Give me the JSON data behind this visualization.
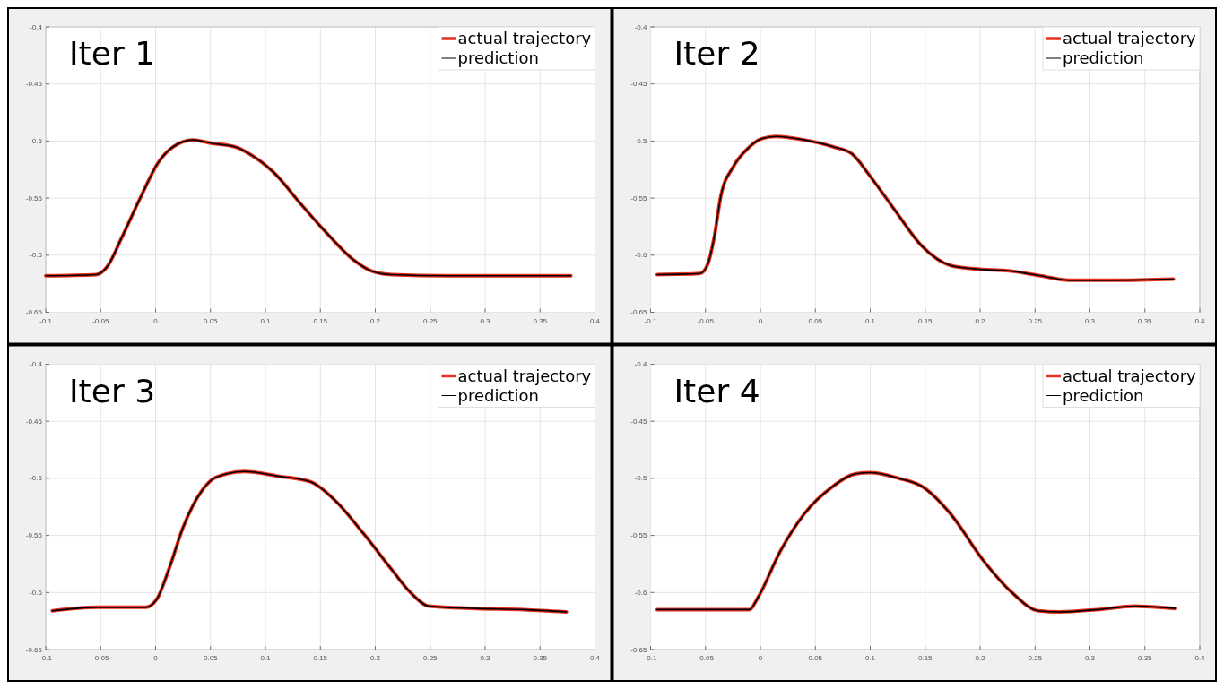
{
  "chart_data": [
    {
      "type": "line",
      "title": "Iter 1",
      "xlim": [
        -0.1,
        0.4
      ],
      "ylim": [
        -0.65,
        -0.4
      ],
      "xticks": [
        -0.1,
        -0.05,
        0,
        0.05,
        0.1,
        0.15,
        0.2,
        0.25,
        0.3,
        0.35,
        0.4
      ],
      "yticks": [
        -0.65,
        -0.6,
        -0.55,
        -0.5,
        -0.45,
        -0.4
      ],
      "grid": true,
      "legend": "top right",
      "series": [
        {
          "name": "actual trajectory",
          "color": "#e8321e",
          "x": [
            -0.1,
            -0.054,
            -0.044,
            -0.031,
            -0.014,
            0.003,
            0.016,
            0.034,
            0.051,
            0.072,
            0.085,
            0.107,
            0.133,
            0.159,
            0.18,
            0.197,
            0.215,
            0.266,
            0.353,
            0.378
          ],
          "values": [
            -0.618,
            -0.617,
            -0.61,
            -0.585,
            -0.55,
            -0.518,
            -0.505,
            -0.499,
            -0.502,
            -0.505,
            -0.511,
            -0.527,
            -0.556,
            -0.584,
            -0.604,
            -0.614,
            -0.617,
            -0.618,
            -0.618,
            -0.618
          ]
        },
        {
          "name": "prediction",
          "color": "#000000",
          "x": [
            -0.1,
            -0.054,
            -0.044,
            -0.031,
            -0.014,
            0.003,
            0.016,
            0.034,
            0.051,
            0.072,
            0.085,
            0.107,
            0.133,
            0.159,
            0.18,
            0.197,
            0.215,
            0.266,
            0.353,
            0.378
          ],
          "values": [
            -0.618,
            -0.617,
            -0.61,
            -0.585,
            -0.55,
            -0.518,
            -0.505,
            -0.499,
            -0.502,
            -0.505,
            -0.511,
            -0.527,
            -0.556,
            -0.584,
            -0.604,
            -0.614,
            -0.617,
            -0.618,
            -0.618,
            -0.618
          ]
        }
      ]
    },
    {
      "type": "line",
      "title": "Iter 2",
      "xlim": [
        -0.1,
        0.4
      ],
      "ylim": [
        -0.65,
        -0.4
      ],
      "xticks": [
        -0.1,
        -0.05,
        0,
        0.05,
        0.1,
        0.15,
        0.2,
        0.25,
        0.3,
        0.35,
        0.4
      ],
      "yticks": [
        -0.65,
        -0.6,
        -0.55,
        -0.5,
        -0.45,
        -0.4
      ],
      "grid": true,
      "legend": "top right",
      "series": [
        {
          "name": "actual trajectory",
          "color": "#e8321e",
          "x": [
            -0.094,
            -0.055,
            -0.048,
            -0.042,
            -0.036,
            -0.025,
            -0.012,
            0.001,
            0.014,
            0.04,
            0.066,
            0.083,
            0.1,
            0.122,
            0.147,
            0.173,
            0.195,
            0.229,
            0.255,
            0.281,
            0.315,
            0.376
          ],
          "values": [
            -0.617,
            -0.616,
            -0.608,
            -0.584,
            -0.548,
            -0.523,
            -0.507,
            -0.498,
            -0.496,
            -0.499,
            -0.505,
            -0.511,
            -0.531,
            -0.56,
            -0.592,
            -0.609,
            -0.612,
            -0.614,
            -0.618,
            -0.622,
            -0.622,
            -0.621
          ]
        },
        {
          "name": "prediction",
          "color": "#000000",
          "x": [
            -0.094,
            -0.055,
            -0.048,
            -0.042,
            -0.036,
            -0.025,
            -0.012,
            0.001,
            0.014,
            0.04,
            0.066,
            0.083,
            0.1,
            0.122,
            0.147,
            0.173,
            0.195,
            0.229,
            0.255,
            0.281,
            0.315,
            0.376
          ],
          "values": [
            -0.617,
            -0.616,
            -0.608,
            -0.584,
            -0.548,
            -0.523,
            -0.507,
            -0.498,
            -0.496,
            -0.499,
            -0.505,
            -0.511,
            -0.531,
            -0.56,
            -0.592,
            -0.609,
            -0.612,
            -0.614,
            -0.618,
            -0.622,
            -0.622,
            -0.621
          ]
        }
      ]
    },
    {
      "type": "line",
      "title": "Iter 3",
      "xlim": [
        -0.1,
        0.4
      ],
      "ylim": [
        -0.65,
        -0.4
      ],
      "xticks": [
        -0.1,
        -0.05,
        0,
        0.05,
        0.1,
        0.15,
        0.2,
        0.25,
        0.3,
        0.35,
        0.4
      ],
      "yticks": [
        -0.65,
        -0.6,
        -0.55,
        -0.5,
        -0.45,
        -0.4
      ],
      "grid": true,
      "legend": "top right",
      "series": [
        {
          "name": "actual trajectory",
          "color": "#e8321e",
          "x": [
            -0.094,
            -0.053,
            -0.009,
            0.001,
            0.012,
            0.025,
            0.042,
            0.055,
            0.081,
            0.111,
            0.141,
            0.163,
            0.189,
            0.215,
            0.232,
            0.249,
            0.292,
            0.335,
            0.374
          ],
          "values": [
            -0.616,
            -0.613,
            -0.613,
            -0.606,
            -0.58,
            -0.543,
            -0.511,
            -0.499,
            -0.494,
            -0.498,
            -0.503,
            -0.519,
            -0.548,
            -0.58,
            -0.6,
            -0.612,
            -0.614,
            -0.615,
            -0.617
          ]
        },
        {
          "name": "prediction",
          "color": "#000000",
          "x": [
            -0.094,
            -0.053,
            -0.009,
            0.001,
            0.012,
            0.025,
            0.042,
            0.055,
            0.081,
            0.111,
            0.141,
            0.163,
            0.189,
            0.215,
            0.232,
            0.249,
            0.292,
            0.335,
            0.374
          ],
          "values": [
            -0.616,
            -0.613,
            -0.613,
            -0.606,
            -0.58,
            -0.543,
            -0.511,
            -0.499,
            -0.494,
            -0.498,
            -0.503,
            -0.519,
            -0.548,
            -0.58,
            -0.6,
            -0.612,
            -0.614,
            -0.615,
            -0.617
          ]
        }
      ]
    },
    {
      "type": "line",
      "title": "Iter 4",
      "xlim": [
        -0.1,
        0.4
      ],
      "ylim": [
        -0.65,
        -0.4
      ],
      "xticks": [
        -0.1,
        -0.05,
        0,
        0.05,
        0.1,
        0.15,
        0.2,
        0.25,
        0.3,
        0.35,
        0.4
      ],
      "yticks": [
        -0.65,
        -0.6,
        -0.55,
        -0.5,
        -0.45,
        -0.4
      ],
      "grid": true,
      "legend": "top right",
      "series": [
        {
          "name": "actual trajectory",
          "color": "#e8321e",
          "x": [
            -0.094,
            -0.01,
            -0.002,
            0.018,
            0.04,
            0.066,
            0.087,
            0.1,
            0.126,
            0.147,
            0.173,
            0.203,
            0.229,
            0.253,
            0.272,
            0.307,
            0.341,
            0.378
          ],
          "values": [
            -0.615,
            -0.615,
            -0.604,
            -0.564,
            -0.531,
            -0.507,
            -0.496,
            -0.495,
            -0.5,
            -0.507,
            -0.531,
            -0.572,
            -0.6,
            -0.616,
            -0.617,
            -0.615,
            -0.612,
            -0.614
          ]
        },
        {
          "name": "prediction",
          "color": "#000000",
          "x": [
            -0.094,
            -0.01,
            -0.002,
            0.018,
            0.04,
            0.066,
            0.087,
            0.1,
            0.126,
            0.147,
            0.173,
            0.203,
            0.229,
            0.253,
            0.272,
            0.307,
            0.341,
            0.378
          ],
          "values": [
            -0.615,
            -0.615,
            -0.604,
            -0.564,
            -0.531,
            -0.507,
            -0.496,
            -0.495,
            -0.5,
            -0.507,
            -0.531,
            -0.572,
            -0.6,
            -0.616,
            -0.617,
            -0.615,
            -0.612,
            -0.614
          ]
        }
      ]
    }
  ]
}
